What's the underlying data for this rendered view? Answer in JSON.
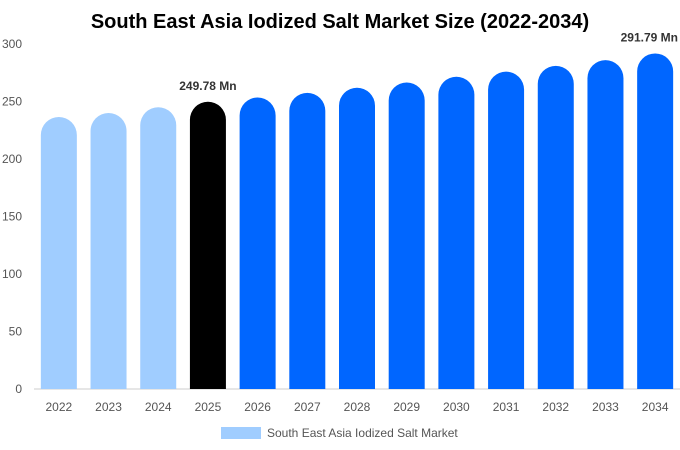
{
  "chart_data": {
    "type": "bar",
    "title": "South East Asia Iodized Salt Market Size (2022-2034)",
    "categories": [
      "2022",
      "2023",
      "2024",
      "2025",
      "2026",
      "2027",
      "2028",
      "2029",
      "2030",
      "2031",
      "2032",
      "2033",
      "2034"
    ],
    "series": [
      {
        "name": "South East Asia Iodized Salt Market",
        "values": [
          236.5,
          240.0,
          245.0,
          249.78,
          253.5,
          257.5,
          262.0,
          266.5,
          271.5,
          276.0,
          281.0,
          286.0,
          291.79
        ]
      }
    ],
    "ylim": [
      0,
      300
    ],
    "yticks": [
      0,
      50,
      100,
      150,
      200,
      250,
      300
    ],
    "data_labels": [
      {
        "category": "2025",
        "text": "249.78 Mn"
      },
      {
        "category": "2034",
        "text": "291.79 Mn"
      }
    ],
    "colors": {
      "historical": "#a0cdff",
      "base_year": "#000000",
      "forecast": "#0066ff"
    },
    "bar_color_groups": [
      "historical",
      "historical",
      "historical",
      "base_year",
      "forecast",
      "forecast",
      "forecast",
      "forecast",
      "forecast",
      "forecast",
      "forecast",
      "forecast",
      "forecast"
    ],
    "grid": false,
    "legend": {
      "position": "bottom",
      "label": "South East Asia Iodized Salt Market",
      "color": "#a0cdff"
    }
  }
}
